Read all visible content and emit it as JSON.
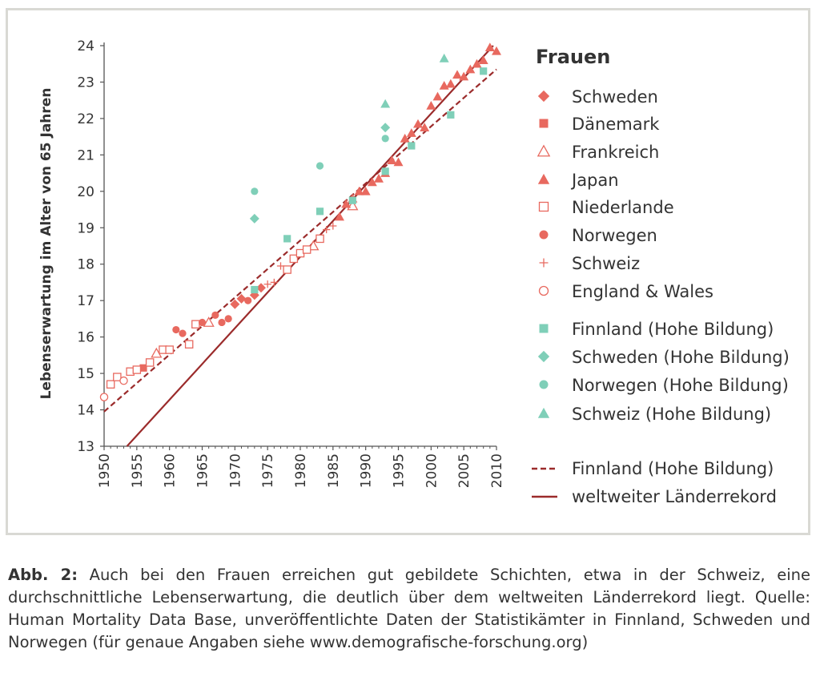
{
  "caption": {
    "label": "Abb. 2:",
    "text": "Auch bei den Frauen erreichen gut gebildete Schichten, etwa in der Schweiz, eine durchschnittliche Lebenserwartung, die deutlich über dem weltweiten Länderrekord liegt. Quelle: Human Mortality Data Base, unveröffentlichte Daten der Statistikämter in Finnland, Schweden und Norwegen (für genaue Angaben siehe www.demografische-forschung.org)"
  },
  "colors": {
    "salmon": "#e8695f",
    "teal": "#7fcfb8",
    "darkred": "#9b2b2b",
    "axis": "#555555"
  },
  "chart_data": {
    "type": "scatter",
    "ylabel": "Lebenserwartung im Alter von 65 Jahren",
    "xlabel": "",
    "xlim": [
      1950,
      2010
    ],
    "ylim": [
      13,
      24
    ],
    "xticks": [
      "1950",
      "1955",
      "1960",
      "1965",
      "1970",
      "1975",
      "1980",
      "1985",
      "1990",
      "1995",
      "2000",
      "2005",
      "2010"
    ],
    "yticks": [
      "13",
      "14",
      "15",
      "16",
      "17",
      "18",
      "19",
      "20",
      "21",
      "22",
      "23",
      "24"
    ],
    "grid": false,
    "legend_title": "Frauen",
    "legend_position": "right",
    "series": [
      {
        "name": "Schweden",
        "marker": "diamond",
        "filled": true,
        "color": "#e8695f",
        "points": [
          [
            1970,
            16.9
          ],
          [
            1971,
            17.05
          ],
          [
            1973,
            17.15
          ],
          [
            1974,
            17.35
          ]
        ]
      },
      {
        "name": "Dänemark",
        "marker": "square",
        "filled": true,
        "color": "#e8695f",
        "points": [
          [
            1956,
            15.15
          ]
        ]
      },
      {
        "name": "Frankreich",
        "marker": "triangle",
        "filled": false,
        "color": "#e8695f",
        "points": [
          [
            1958,
            15.55
          ],
          [
            1966,
            16.4
          ],
          [
            1982,
            18.5
          ],
          [
            1988,
            19.6
          ]
        ]
      },
      {
        "name": "Japan",
        "marker": "triangle",
        "filled": true,
        "color": "#e8695f",
        "points": [
          [
            1986,
            19.3
          ],
          [
            1987,
            19.65
          ],
          [
            1988,
            19.8
          ],
          [
            1989,
            20.0
          ],
          [
            1990,
            20.0
          ],
          [
            1991,
            20.25
          ],
          [
            1992,
            20.35
          ],
          [
            1993,
            20.5
          ],
          [
            1994,
            20.85
          ],
          [
            1995,
            20.8
          ],
          [
            1996,
            21.45
          ],
          [
            1997,
            21.6
          ],
          [
            1998,
            21.85
          ],
          [
            1999,
            21.75
          ],
          [
            2000,
            22.35
          ],
          [
            2001,
            22.6
          ],
          [
            2002,
            22.9
          ],
          [
            2003,
            22.95
          ],
          [
            2004,
            23.2
          ],
          [
            2005,
            23.15
          ],
          [
            2006,
            23.35
          ],
          [
            2007,
            23.5
          ],
          [
            2008,
            23.6
          ],
          [
            2009,
            23.95
          ],
          [
            2010,
            23.85
          ]
        ]
      },
      {
        "name": "Niederlande",
        "marker": "square",
        "filled": false,
        "color": "#e8695f",
        "points": [
          [
            1951,
            14.7
          ],
          [
            1952,
            14.9
          ],
          [
            1954,
            15.05
          ],
          [
            1955,
            15.1
          ],
          [
            1957,
            15.3
          ],
          [
            1959,
            15.65
          ],
          [
            1960,
            15.65
          ],
          [
            1963,
            15.8
          ],
          [
            1964,
            16.35
          ],
          [
            1978,
            17.85
          ],
          [
            1979,
            18.15
          ],
          [
            1980,
            18.3
          ],
          [
            1981,
            18.4
          ],
          [
            1983,
            18.7
          ]
        ]
      },
      {
        "name": "Norwegen",
        "marker": "circle",
        "filled": true,
        "color": "#e8695f",
        "points": [
          [
            1961,
            16.2
          ],
          [
            1962,
            16.1
          ],
          [
            1965,
            16.4
          ],
          [
            1967,
            16.6
          ],
          [
            1968,
            16.4
          ],
          [
            1969,
            16.5
          ],
          [
            1972,
            17.0
          ]
        ]
      },
      {
        "name": "Schweiz",
        "marker": "plus",
        "filled": false,
        "color": "#e8695f",
        "points": [
          [
            1975,
            17.45
          ],
          [
            1976,
            17.5
          ],
          [
            1977,
            17.95
          ],
          [
            1984,
            18.95
          ],
          [
            1985,
            19.05
          ]
        ]
      },
      {
        "name": "England & Wales",
        "marker": "circle",
        "filled": false,
        "color": "#e8695f",
        "points": [
          [
            1950,
            14.35
          ],
          [
            1953,
            14.8
          ]
        ]
      },
      {
        "name": "Finnland (Hohe Bildung)",
        "marker": "square",
        "filled": true,
        "color": "#7fcfb8",
        "points": [
          [
            1973,
            17.3
          ],
          [
            1978,
            18.7
          ],
          [
            1983,
            19.45
          ],
          [
            1988,
            19.75
          ],
          [
            1993,
            20.55
          ],
          [
            1997,
            21.25
          ],
          [
            2003,
            22.1
          ],
          [
            2008,
            23.3
          ]
        ]
      },
      {
        "name": "Schweden (Hohe Bildung)",
        "marker": "diamond",
        "filled": true,
        "color": "#7fcfb8",
        "points": [
          [
            1973,
            19.25
          ],
          [
            1993,
            21.75
          ]
        ]
      },
      {
        "name": "Norwegen (Hohe Bildung)",
        "marker": "circle",
        "filled": true,
        "color": "#7fcfb8",
        "points": [
          [
            1973,
            20.0
          ],
          [
            1983,
            20.7
          ],
          [
            1993,
            21.45
          ]
        ]
      },
      {
        "name": "Schweiz (Hohe Bildung)",
        "marker": "triangle",
        "filled": true,
        "color": "#7fcfb8",
        "points": [
          [
            1993,
            22.4
          ],
          [
            2002,
            23.65
          ]
        ]
      }
    ],
    "lines": [
      {
        "name": "Finnland (Hohe Bildung)",
        "style": "dashed",
        "color": "#9b2b2b",
        "points": [
          [
            1950,
            13.95
          ],
          [
            2010,
            23.35
          ]
        ]
      },
      {
        "name": "weltweiter Länderrekord",
        "style": "solid",
        "color": "#9b2b2b",
        "points": [
          [
            1953.5,
            13.0
          ],
          [
            2009.5,
            24.0
          ]
        ]
      }
    ]
  }
}
